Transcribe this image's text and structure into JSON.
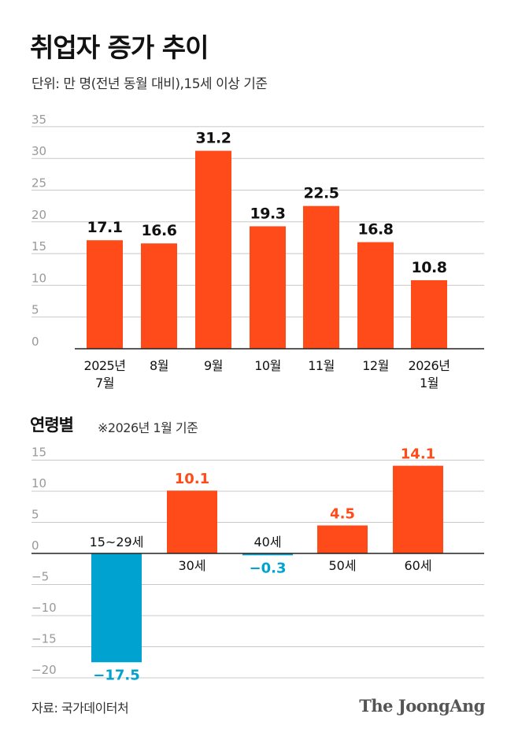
{
  "title": "취업자 증가 추이",
  "subtitle": "단위: 만 명(전년 동월 대비),15세 이상 기준",
  "source": "자료: 국가데이터처",
  "logo": "The JoongAng",
  "colors": {
    "positive": "#FF4B19",
    "negative": "#00A3D0",
    "grid": "#c8c8c8",
    "axis": "#222222"
  },
  "chart_data": [
    {
      "type": "bar",
      "categories": [
        [
          "2025년",
          "7월"
        ],
        [
          "8월"
        ],
        [
          "9월"
        ],
        [
          "10월"
        ],
        [
          "11월"
        ],
        [
          "12월"
        ],
        [
          "2026년",
          "1월"
        ]
      ],
      "values": [
        17.1,
        16.6,
        31.2,
        19.3,
        22.5,
        16.8,
        10.8
      ],
      "labels": [
        "17.1",
        "16.6",
        "31.2",
        "19.3",
        "22.5",
        "16.8",
        "10.8"
      ],
      "yticks": [
        0,
        5,
        10,
        15,
        20,
        25,
        30,
        35
      ],
      "ylim": [
        0,
        35
      ],
      "grid": true
    },
    {
      "type": "bar",
      "title": "연령별",
      "note": "※2026년 1월 기준",
      "categories": [
        "15~29세",
        "30세",
        "40세",
        "50세",
        "60세"
      ],
      "values": [
        -17.5,
        10.1,
        -0.3,
        4.5,
        14.1
      ],
      "labels": [
        "−17.5",
        "10.1",
        "−0.3",
        "4.5",
        "14.1"
      ],
      "yticks": [
        15,
        10,
        5,
        0,
        -5,
        -10,
        -15,
        -20
      ],
      "ytick_labels": [
        "15",
        "10",
        "5",
        "0",
        "−5",
        "−10",
        "−15",
        "−20"
      ],
      "ylim": [
        -20,
        15
      ],
      "grid": true
    }
  ]
}
